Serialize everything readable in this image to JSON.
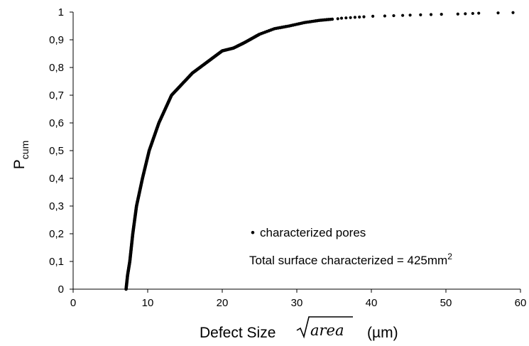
{
  "chart_data": {
    "type": "scatter",
    "xlabel_prefix": "Defect Size ",
    "xlabel_math": "area",
    "xlabel_unit": "(µm)",
    "ylabel_main": "P",
    "ylabel_sub": "cum",
    "xlim": [
      0,
      60
    ],
    "ylim": [
      0,
      1
    ],
    "grid": false,
    "x_ticks": [
      "0",
      "10",
      "20",
      "30",
      "40",
      "50",
      "60"
    ],
    "y_ticks": [
      "0",
      "0,1",
      "0,2",
      "0,3",
      "0,4",
      "0,5",
      "0,6",
      "0,7",
      "0,8",
      "0,9",
      "1"
    ],
    "legend": {
      "marker": "•",
      "label": "characterized pores",
      "placement": "bottom-right"
    },
    "annotation": {
      "text": "Total surface characterized = 425mm",
      "sup": "2"
    },
    "series": [
      {
        "name": "characterized pores",
        "color": "#000000",
        "curve": [
          [
            7.1,
            0.0
          ],
          [
            7.3,
            0.05
          ],
          [
            7.6,
            0.1
          ],
          [
            8.0,
            0.2
          ],
          [
            8.5,
            0.3
          ],
          [
            9.3,
            0.4
          ],
          [
            10.2,
            0.5
          ],
          [
            11.5,
            0.6
          ],
          [
            13.2,
            0.7
          ],
          [
            16.0,
            0.78
          ],
          [
            18.5,
            0.83
          ],
          [
            20.0,
            0.86
          ],
          [
            21.5,
            0.87
          ],
          [
            23.0,
            0.89
          ],
          [
            25.0,
            0.92
          ],
          [
            27.0,
            0.94
          ],
          [
            29.0,
            0.95
          ],
          [
            31.0,
            0.962
          ],
          [
            33.0,
            0.97
          ],
          [
            35.0,
            0.975
          ]
        ],
        "sparse_points": [
          [
            35.5,
            0.976
          ],
          [
            36.0,
            0.978
          ],
          [
            36.6,
            0.979
          ],
          [
            37.2,
            0.98
          ],
          [
            37.8,
            0.981
          ],
          [
            38.4,
            0.982
          ],
          [
            39.0,
            0.983
          ],
          [
            40.2,
            0.985
          ],
          [
            41.8,
            0.986
          ],
          [
            43.0,
            0.987
          ],
          [
            44.2,
            0.988
          ],
          [
            45.2,
            0.989
          ],
          [
            46.6,
            0.99
          ],
          [
            48.0,
            0.991
          ],
          [
            49.4,
            0.992
          ],
          [
            51.6,
            0.993
          ],
          [
            52.6,
            0.994
          ],
          [
            53.6,
            0.995
          ],
          [
            54.4,
            0.996
          ],
          [
            57.0,
            0.997
          ],
          [
            59.0,
            0.998
          ]
        ]
      }
    ]
  }
}
